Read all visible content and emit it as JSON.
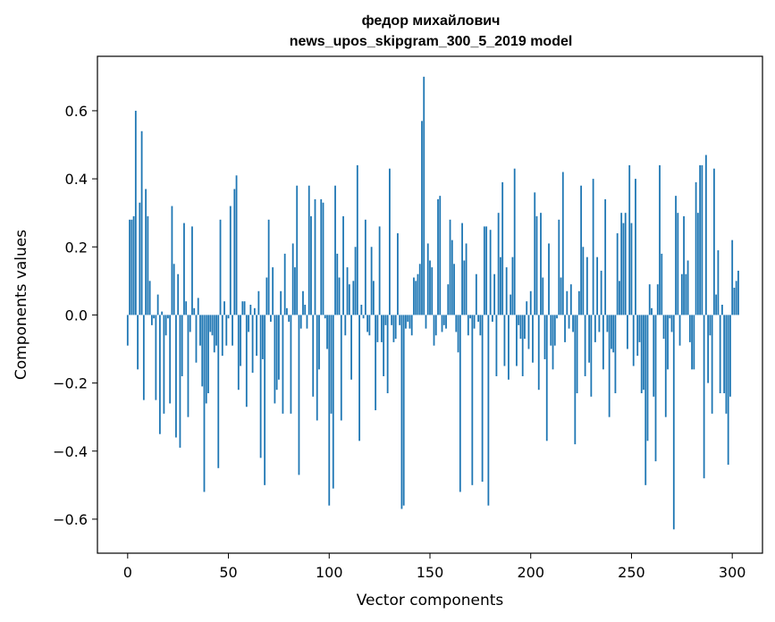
{
  "chart_data": {
    "type": "bar",
    "title_line1": "федор михайлович",
    "title_line2": "news_upos_skipgram_300_5_2019 model",
    "xlabel": "Vector components",
    "ylabel": "Components values",
    "xlim": [
      -15,
      315
    ],
    "ylim": [
      -0.7,
      0.76
    ],
    "xticks": [
      0,
      50,
      100,
      150,
      200,
      250,
      300
    ],
    "xtick_labels": [
      "0",
      "50",
      "100",
      "150",
      "200",
      "250",
      "300"
    ],
    "yticks": [
      -0.6,
      -0.4,
      -0.2,
      0.0,
      0.2,
      0.4,
      0.6
    ],
    "ytick_labels": [
      "−0.6",
      "−0.4",
      "−0.2",
      "0.0",
      "0.2",
      "0.4",
      "0.6"
    ],
    "bar_color": "#1f77b4",
    "values": [
      -0.09,
      0.28,
      0.28,
      0.29,
      0.6,
      -0.16,
      0.33,
      0.54,
      -0.25,
      0.37,
      0.29,
      0.1,
      -0.03,
      -0.01,
      -0.25,
      0.06,
      -0.35,
      0.01,
      -0.29,
      -0.06,
      -0.01,
      -0.26,
      0.32,
      0.15,
      -0.36,
      0.12,
      -0.39,
      -0.18,
      0.27,
      0.04,
      -0.3,
      -0.05,
      0.26,
      0.02,
      -0.14,
      0.05,
      -0.09,
      -0.21,
      -0.52,
      -0.26,
      -0.23,
      -0.05,
      -0.06,
      -0.11,
      -0.09,
      -0.45,
      0.28,
      -0.12,
      0.04,
      -0.09,
      -0.01,
      0.32,
      -0.09,
      0.37,
      0.41,
      -0.22,
      -0.15,
      0.04,
      0.04,
      -0.27,
      -0.05,
      0.03,
      -0.17,
      0.02,
      -0.12,
      0.07,
      -0.42,
      -0.13,
      -0.5,
      0.11,
      0.28,
      -0.02,
      0.14,
      -0.26,
      -0.22,
      -0.19,
      0.07,
      -0.29,
      0.18,
      0.02,
      -0.02,
      -0.29,
      0.21,
      0.14,
      0.38,
      -0.47,
      -0.04,
      0.07,
      0.03,
      -0.04,
      0.38,
      0.29,
      -0.24,
      0.34,
      -0.31,
      -0.16,
      0.34,
      0.33,
      -0.01,
      -0.1,
      -0.56,
      -0.29,
      -0.51,
      0.38,
      0.18,
      0.11,
      -0.31,
      0.29,
      -0.06,
      0.14,
      0.09,
      -0.19,
      0.1,
      0.2,
      0.44,
      -0.37,
      0.03,
      -0.01,
      0.28,
      -0.05,
      -0.06,
      0.2,
      0.1,
      -0.28,
      -0.08,
      0.26,
      -0.08,
      -0.18,
      -0.03,
      -0.23,
      0.43,
      -0.03,
      -0.08,
      -0.07,
      0.24,
      -0.03,
      -0.57,
      -0.56,
      -0.04,
      -0.02,
      -0.04,
      -0.06,
      0.11,
      0.1,
      0.12,
      0.15,
      0.57,
      0.7,
      -0.04,
      0.21,
      0.16,
      0.14,
      -0.09,
      -0.06,
      0.34,
      0.35,
      -0.05,
      -0.03,
      -0.04,
      0.09,
      0.28,
      0.22,
      0.15,
      -0.05,
      -0.11,
      -0.52,
      0.27,
      0.16,
      0.21,
      -0.06,
      -0.01,
      -0.5,
      -0.04,
      0.12,
      -0.02,
      -0.06,
      -0.49,
      0.26,
      0.26,
      -0.56,
      0.25,
      -0.02,
      0.12,
      -0.18,
      0.3,
      0.17,
      0.39,
      -0.15,
      0.14,
      -0.19,
      0.06,
      0.17,
      0.43,
      -0.15,
      -0.03,
      -0.07,
      -0.18,
      -0.07,
      0.04,
      -0.1,
      0.07,
      -0.14,
      0.36,
      0.29,
      -0.22,
      0.3,
      0.11,
      -0.13,
      -0.37,
      0.21,
      -0.09,
      -0.16,
      -0.09,
      -0.01,
      0.28,
      0.11,
      0.42,
      -0.08,
      0.07,
      -0.04,
      0.09,
      -0.05,
      -0.38,
      -0.23,
      0.07,
      0.38,
      0.2,
      -0.18,
      0.17,
      -0.14,
      -0.24,
      0.4,
      -0.08,
      0.17,
      -0.05,
      0.13,
      -0.16,
      0.34,
      -0.05,
      -0.3,
      -0.1,
      -0.11,
      -0.23,
      0.24,
      0.1,
      0.3,
      0.27,
      0.3,
      -0.1,
      0.44,
      0.27,
      -0.15,
      0.4,
      -0.12,
      -0.08,
      -0.23,
      -0.22,
      -0.5,
      -0.37,
      0.09,
      0.02,
      -0.24,
      -0.43,
      0.09,
      0.44,
      0.18,
      -0.07,
      -0.3,
      -0.16,
      -0.01,
      -0.05,
      -0.63,
      0.35,
      0.3,
      -0.09,
      0.12,
      0.29,
      0.12,
      0.16,
      -0.08,
      -0.16,
      -0.16,
      0.39,
      0.3,
      0.44,
      0.44,
      -0.48,
      0.47,
      -0.2,
      -0.06,
      -0.29,
      0.43,
      0.06,
      0.19,
      -0.23,
      0.03,
      -0.23,
      -0.29,
      -0.44,
      -0.24,
      0.22,
      0.08,
      0.1,
      0.13
    ]
  }
}
